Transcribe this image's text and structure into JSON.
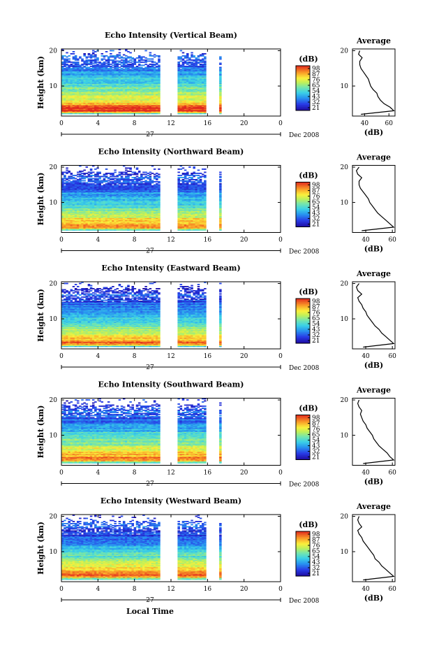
{
  "chart_data": [
    {
      "type": "heatmap",
      "title": "Echo Intensity (Vertical Beam)",
      "ylabel": "Height (km)",
      "xlabel": "",
      "x_ticks": [
        "0",
        "4",
        "8",
        "12",
        "16",
        "20",
        "0"
      ],
      "y_ticks": [
        "20",
        "10"
      ],
      "xlim": [
        0,
        24
      ],
      "ylim": [
        1.5,
        20.5
      ],
      "data_gaps_hours": [
        [
          10.8,
          12.7
        ],
        [
          15.9,
          17.3
        ],
        [
          17.6,
          17.9
        ],
        [
          18.0,
          18.3
        ]
      ],
      "date_day": "27",
      "date_label": "Dec 2008",
      "colorbar": {
        "unit": "(dB)",
        "ticks": [
          "98",
          "87",
          "76",
          "65",
          "54",
          "43",
          "32",
          "21"
        ],
        "range": [
          21,
          98
        ]
      },
      "profile": {
        "title": "Average",
        "xlabel": "(dB)",
        "x_ticks": [
          "40",
          "60"
        ],
        "y_ticks": [
          "20",
          "10"
        ],
        "xlim": [
          30,
          65
        ],
        "ylim": [
          1.5,
          20.5
        ],
        "height_km": [
          2,
          3,
          4,
          5,
          6,
          7,
          8,
          9,
          10,
          11,
          12,
          13,
          14,
          15,
          16,
          17,
          18,
          19,
          20
        ],
        "power_db": [
          37,
          64,
          61,
          56,
          53,
          51,
          50,
          47,
          45,
          44,
          43,
          41,
          39,
          37,
          36,
          36,
          38,
          35,
          36
        ]
      }
    },
    {
      "type": "heatmap",
      "title": "Echo Intensity (Northward Beam)",
      "ylabel": "Height (km)",
      "xlabel": "",
      "x_ticks": [
        "0",
        "4",
        "8",
        "12",
        "16",
        "20",
        "0"
      ],
      "y_ticks": [
        "20",
        "10"
      ],
      "xlim": [
        0,
        24
      ],
      "ylim": [
        1.5,
        20.5
      ],
      "data_gaps_hours": [
        [
          10.8,
          12.7
        ],
        [
          15.9,
          17.3
        ],
        [
          17.6,
          17.9
        ],
        [
          18.0,
          18.3
        ]
      ],
      "date_day": "27",
      "date_label": "Dec 2008",
      "colorbar": {
        "unit": "(dB)",
        "ticks": [
          "98",
          "87",
          "76",
          "65",
          "54",
          "43",
          "32",
          "21"
        ],
        "range": [
          21,
          98
        ]
      },
      "profile": {
        "title": "Average",
        "xlabel": "(dB)",
        "x_ticks": [
          "40",
          "60"
        ],
        "y_ticks": [
          "20",
          "10"
        ],
        "xlim": [
          30,
          62
        ],
        "ylim": [
          1.5,
          20.5
        ],
        "height_km": [
          2,
          3,
          4,
          5,
          6,
          7,
          8,
          9,
          10,
          11,
          12,
          13,
          14,
          15,
          16,
          17,
          18,
          19,
          20
        ],
        "power_db": [
          37,
          61,
          58,
          55,
          52,
          49,
          47,
          45,
          43,
          42,
          40,
          38,
          36,
          35,
          35,
          37,
          34,
          33,
          35
        ]
      }
    },
    {
      "type": "heatmap",
      "title": "Echo Intensity (Eastward Beam)",
      "ylabel": "Height (km)",
      "xlabel": "",
      "x_ticks": [
        "0",
        "4",
        "8",
        "12",
        "16",
        "20",
        "0"
      ],
      "y_ticks": [
        "20",
        "10"
      ],
      "xlim": [
        0,
        24
      ],
      "ylim": [
        1.5,
        20.5
      ],
      "data_gaps_hours": [
        [
          10.8,
          12.7
        ],
        [
          15.9,
          17.3
        ],
        [
          17.6,
          17.9
        ],
        [
          18.0,
          18.3
        ]
      ],
      "date_day": "27",
      "date_label": "Dec 2008",
      "colorbar": {
        "unit": "(dB)",
        "ticks": [
          "98",
          "87",
          "76",
          "65",
          "54",
          "43",
          "32",
          "21"
        ],
        "range": [
          21,
          98
        ]
      },
      "profile": {
        "title": "Average",
        "xlabel": "(dB)",
        "x_ticks": [
          "40",
          "60"
        ],
        "y_ticks": [
          "20",
          "10"
        ],
        "xlim": [
          30,
          62
        ],
        "ylim": [
          1.5,
          20.5
        ],
        "height_km": [
          2,
          3,
          4,
          5,
          6,
          7,
          8,
          9,
          10,
          11,
          12,
          13,
          14,
          15,
          16,
          17,
          18,
          19,
          20
        ],
        "power_db": [
          38,
          61,
          58,
          55,
          52,
          50,
          47,
          45,
          43,
          41,
          40,
          38,
          37,
          35,
          34,
          37,
          34,
          33,
          35
        ]
      }
    },
    {
      "type": "heatmap",
      "title": "Echo Intensity (Southward Beam)",
      "ylabel": "Height (km)",
      "xlabel": "",
      "x_ticks": [
        "0",
        "4",
        "8",
        "12",
        "16",
        "20",
        "0"
      ],
      "y_ticks": [
        "20",
        "10"
      ],
      "xlim": [
        0,
        24
      ],
      "ylim": [
        1.5,
        20.5
      ],
      "data_gaps_hours": [
        [
          10.8,
          12.7
        ],
        [
          15.9,
          17.3
        ],
        [
          17.6,
          17.9
        ],
        [
          18.0,
          18.3
        ]
      ],
      "date_day": "27",
      "date_label": "Dec 2008",
      "colorbar": {
        "unit": "(dB)",
        "ticks": [
          "98",
          "87",
          "76",
          "65",
          "54",
          "43",
          "32",
          "21"
        ],
        "range": [
          21,
          98
        ]
      },
      "profile": {
        "title": "Average",
        "xlabel": "(dB)",
        "x_ticks": [
          "40",
          "60"
        ],
        "y_ticks": [
          "20",
          "10"
        ],
        "xlim": [
          30,
          62
        ],
        "ylim": [
          1.5,
          20.5
        ],
        "height_km": [
          2,
          3,
          4,
          5,
          6,
          7,
          8,
          9,
          10,
          11,
          12,
          13,
          14,
          15,
          16,
          17,
          18,
          19,
          20
        ],
        "power_db": [
          38,
          61,
          58,
          56,
          53,
          50,
          48,
          46,
          45,
          43,
          41,
          40,
          38,
          37,
          36,
          37,
          35,
          34,
          35
        ]
      }
    },
    {
      "type": "heatmap",
      "title": "Echo Intensity (Westward Beam)",
      "ylabel": "Height (km)",
      "xlabel": "Local Time",
      "x_ticks": [
        "0",
        "4",
        "8",
        "12",
        "16",
        "20",
        "0"
      ],
      "y_ticks": [
        "20",
        "10"
      ],
      "xlim": [
        0,
        24
      ],
      "ylim": [
        1.5,
        20.5
      ],
      "data_gaps_hours": [
        [
          10.8,
          12.7
        ],
        [
          15.9,
          17.3
        ],
        [
          17.6,
          17.9
        ],
        [
          18.0,
          18.3
        ]
      ],
      "date_day": "27",
      "date_label": "Dec 2008",
      "colorbar": {
        "unit": "(dB)",
        "ticks": [
          "98",
          "87",
          "76",
          "65",
          "54",
          "43",
          "32",
          "21"
        ],
        "range": [
          21,
          98
        ]
      },
      "profile": {
        "title": "Average",
        "xlabel": "(dB)",
        "x_ticks": [
          "40",
          "60"
        ],
        "y_ticks": [
          "20",
          "10"
        ],
        "xlim": [
          30,
          62
        ],
        "ylim": [
          1.5,
          20.5
        ],
        "height_km": [
          2,
          3,
          4,
          5,
          6,
          7,
          8,
          9,
          10,
          11,
          12,
          13,
          14,
          15,
          16,
          17,
          18,
          19,
          20
        ],
        "power_db": [
          38,
          61,
          58,
          55,
          52,
          50,
          47,
          46,
          44,
          42,
          40,
          38,
          37,
          35,
          34,
          37,
          35,
          34,
          35
        ]
      }
    }
  ]
}
